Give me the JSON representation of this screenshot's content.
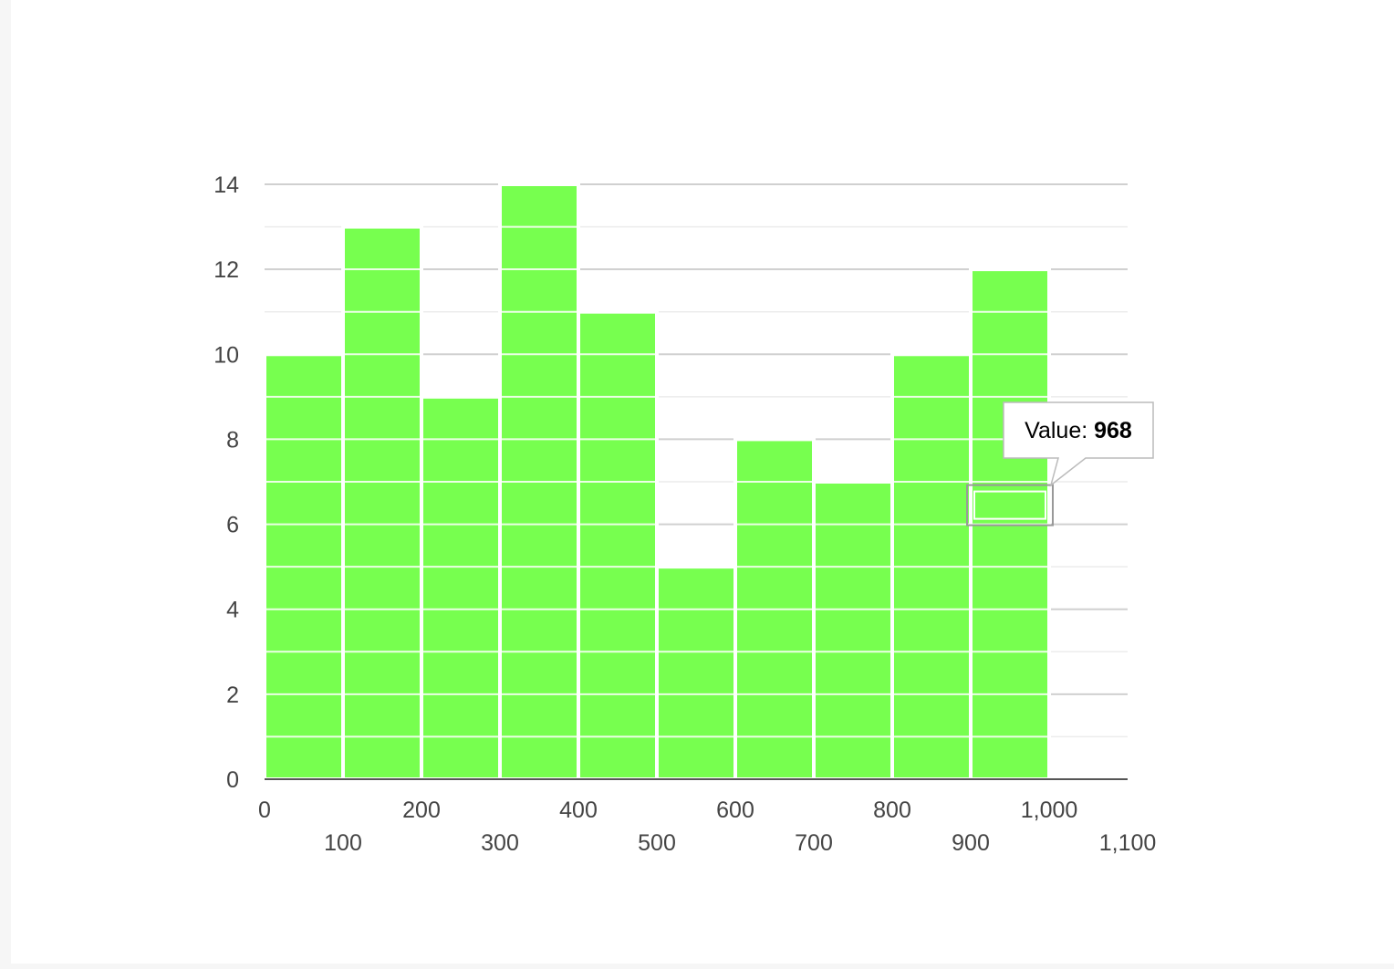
{
  "colors": {
    "bar": "#77ff4f",
    "bar_border": "#ffffff",
    "grid_major": "#d0d0d0",
    "grid_minor": "#ececec",
    "axis": "#555555",
    "tick_text": "#444444",
    "tooltip_border": "#bbbbbb",
    "highlight_border": "#999999"
  },
  "chart_data": {
    "type": "bar",
    "x": [
      0,
      100,
      200,
      300,
      400,
      500,
      600,
      700,
      800,
      900
    ],
    "bin_width": 100,
    "values": [
      10,
      13,
      9,
      14,
      11,
      5,
      8,
      7,
      10,
      12
    ],
    "xlim": [
      0,
      1100
    ],
    "ylim": [
      0,
      14
    ],
    "xticks": [
      "0",
      "100",
      "200",
      "300",
      "400",
      "500",
      "600",
      "700",
      "800",
      "900",
      "1,000",
      "1,100"
    ],
    "yticks": [
      "0",
      "2",
      "4",
      "6",
      "8",
      "10",
      "12",
      "14"
    ],
    "grid": true,
    "title": "",
    "xlabel": "",
    "ylabel": "",
    "tooltip": {
      "label": "Value: ",
      "value": "968",
      "target_bar_index": 9
    }
  }
}
